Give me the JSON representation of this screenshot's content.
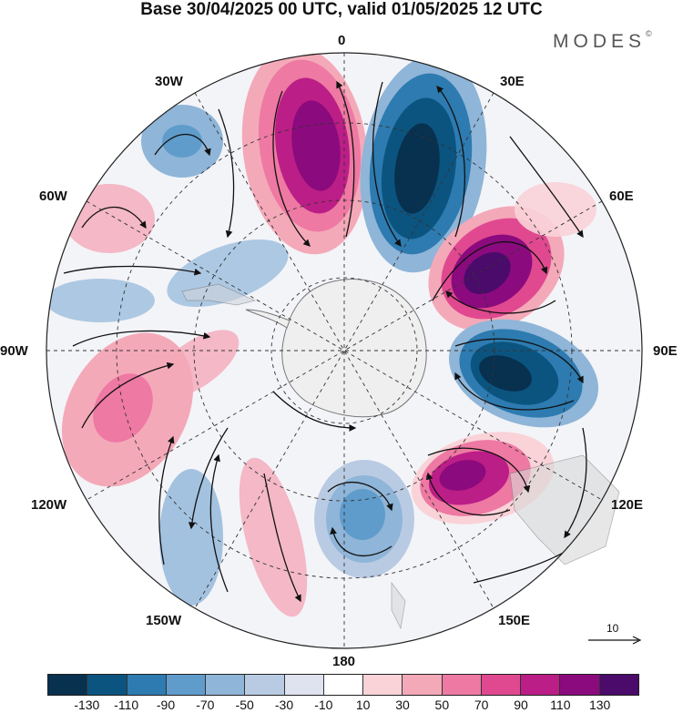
{
  "title": "Base 30/04/2025 00 UTC, valid 01/05/2025 12 UTC",
  "brand": {
    "name": "MODES",
    "mark": "©"
  },
  "longitude_labels": {
    "lon_0": "0",
    "lon_30e": "30E",
    "lon_60e": "60E",
    "lon_90e": "90E",
    "lon_120e": "120E",
    "lon_150e": "150E",
    "lon_180": "180",
    "lon_150w": "150W",
    "lon_120w": "120W",
    "lon_90w": "90W",
    "lon_60w": "60W",
    "lon_30w": "30W"
  },
  "reference_vector": {
    "label": "10"
  },
  "colorbar": {
    "colors": [
      "#08304f",
      "#0b5480",
      "#2d7bb0",
      "#5f9ccb",
      "#8fb5d8",
      "#b9cbe3",
      "#dfe3f0",
      "#ffffff",
      "#f9d3d8",
      "#f4a9b9",
      "#ee79a3",
      "#e0498f",
      "#bb1e86",
      "#8b0a7e",
      "#4a0b6a"
    ],
    "tick_labels": [
      "-130",
      "-110",
      "-90",
      "-70",
      "-50",
      "-30",
      "-10",
      "10",
      "30",
      "50",
      "70",
      "90",
      "110",
      "130"
    ]
  },
  "map": {
    "projection": "south polar stereographic",
    "field": "anomaly contours with wind vectors",
    "anomalies": [
      {
        "lon_label": "~15W",
        "sign": "positive",
        "value": 120
      },
      {
        "lon_label": "~20E",
        "sign": "negative",
        "value": -130
      },
      {
        "lon_label": "~60E",
        "sign": "positive",
        "value": 130
      },
      {
        "lon_label": "~95E",
        "sign": "negative",
        "value": -120
      },
      {
        "lon_label": "~125E",
        "sign": "positive",
        "value": 115
      },
      {
        "lon_label": "~160E",
        "sign": "negative",
        "value": -80
      },
      {
        "lon_label": "~110W",
        "sign": "positive",
        "value": 70
      },
      {
        "lon_label": "~40W",
        "sign": "negative",
        "value": -60
      },
      {
        "lon_label": "~65W",
        "sign": "positive",
        "value": 40
      }
    ]
  }
}
